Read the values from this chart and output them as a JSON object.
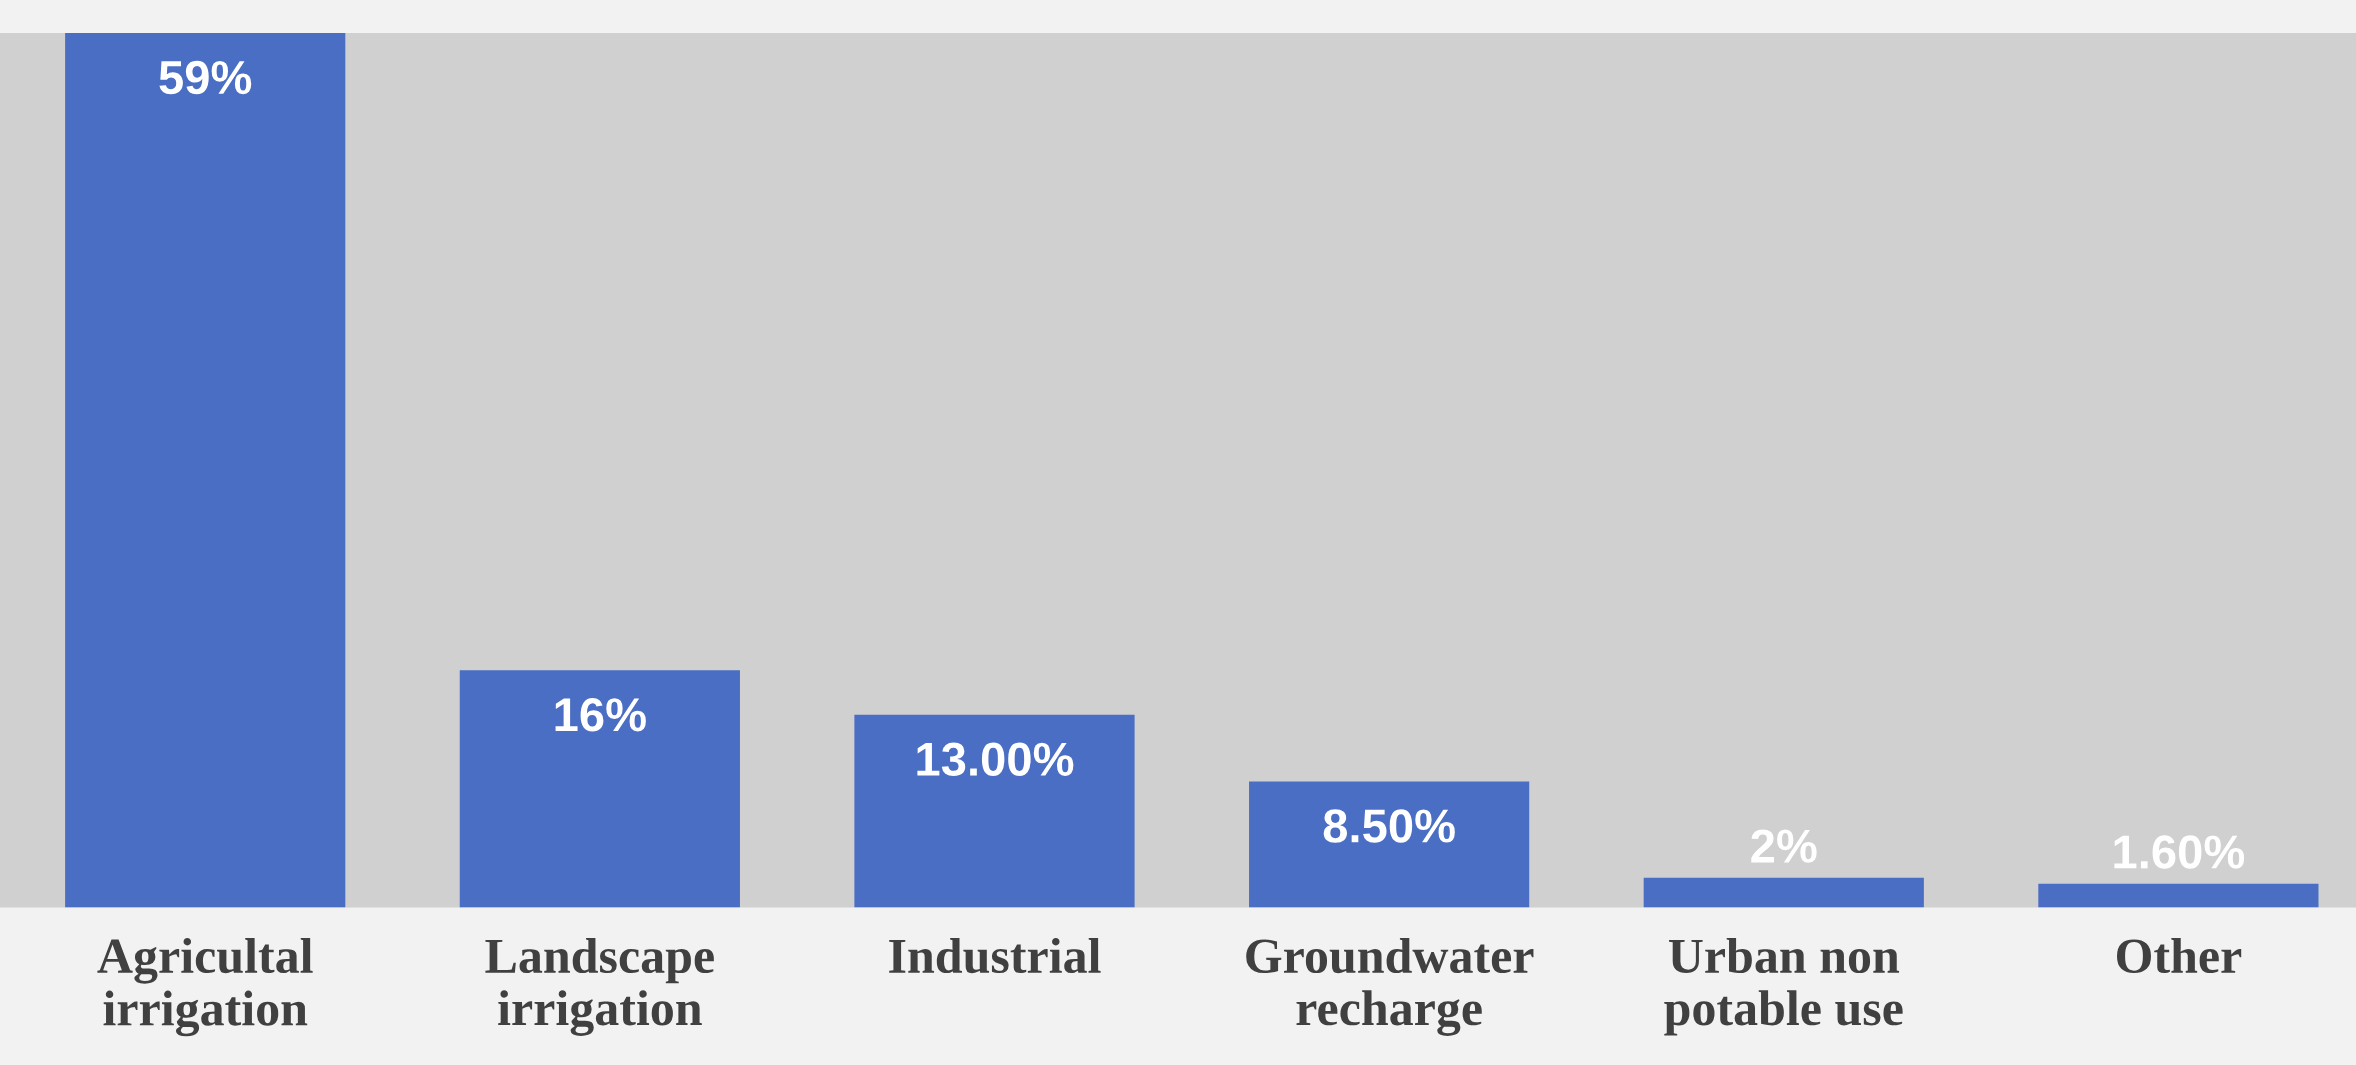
{
  "chart_data": {
    "type": "bar",
    "categories": [
      "Agricultal\nirrigation",
      "Landscape\nirrigation",
      "Industrial",
      "Groundwater\nrecharge",
      "Urban non\npotable use",
      "Other"
    ],
    "values": [
      59,
      16,
      13.0,
      8.5,
      2,
      1.6
    ],
    "value_labels": [
      "59%",
      "16%",
      "13.00%",
      "8.50%",
      "2%",
      "1.60%"
    ],
    "color": "#4a6ec4",
    "grid": false,
    "legend": false
  }
}
